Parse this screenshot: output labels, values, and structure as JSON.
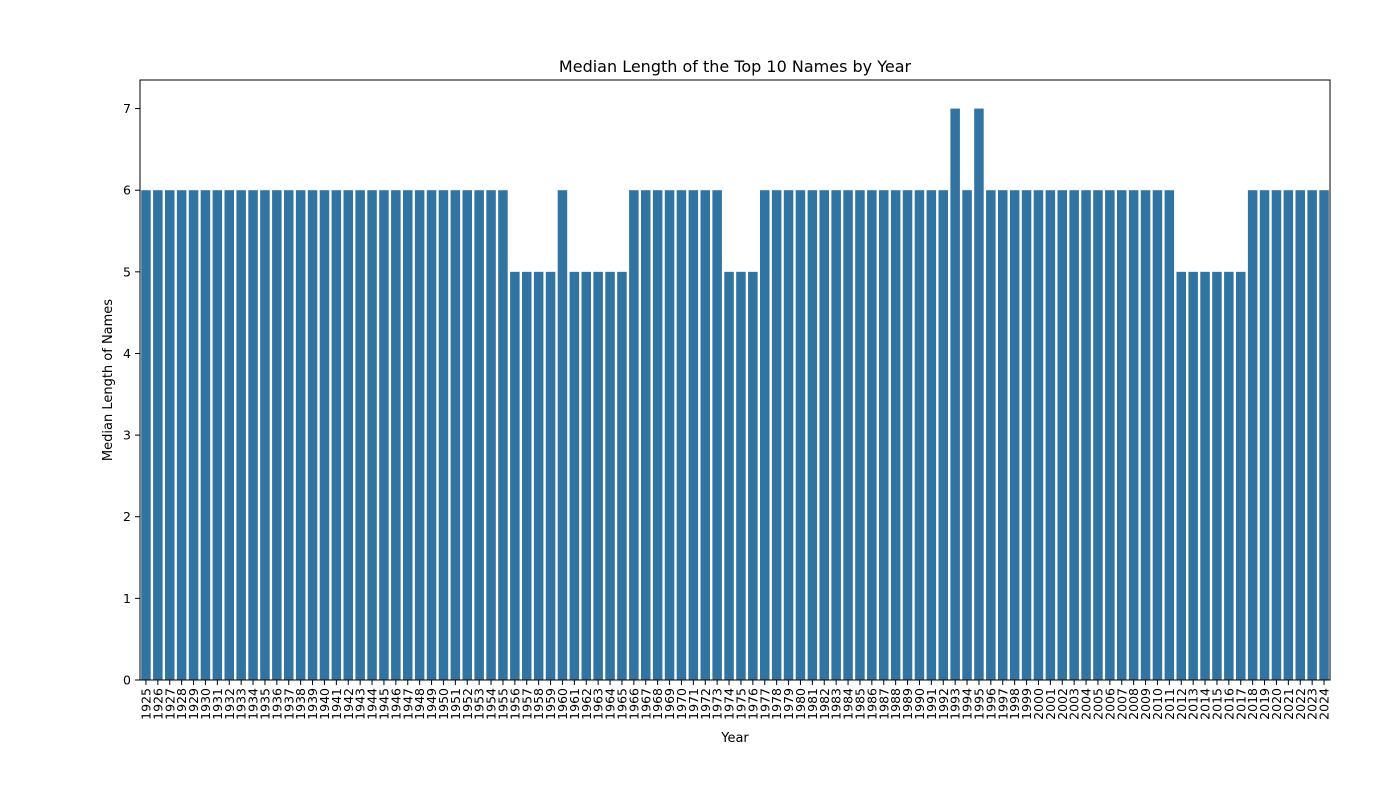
{
  "chart_data": {
    "type": "bar",
    "title": "Median Length of the Top 10 Names by Year",
    "xlabel": "Year",
    "ylabel": "Median Length of Names",
    "ylim": [
      0,
      7.35
    ],
    "yticks": [
      0,
      1,
      2,
      3,
      4,
      5,
      6,
      7
    ],
    "bar_color": "#3274a1",
    "categories": [
      "1925",
      "1926",
      "1927",
      "1928",
      "1929",
      "1930",
      "1931",
      "1932",
      "1933",
      "1934",
      "1935",
      "1936",
      "1937",
      "1938",
      "1939",
      "1940",
      "1941",
      "1942",
      "1943",
      "1944",
      "1945",
      "1946",
      "1947",
      "1948",
      "1949",
      "1950",
      "1951",
      "1952",
      "1953",
      "1954",
      "1955",
      "1956",
      "1957",
      "1958",
      "1959",
      "1960",
      "1961",
      "1962",
      "1963",
      "1964",
      "1965",
      "1966",
      "1967",
      "1968",
      "1969",
      "1970",
      "1971",
      "1972",
      "1973",
      "1974",
      "1975",
      "1976",
      "1977",
      "1978",
      "1979",
      "1980",
      "1981",
      "1982",
      "1983",
      "1984",
      "1985",
      "1986",
      "1987",
      "1988",
      "1989",
      "1990",
      "1991",
      "1992",
      "1993",
      "1994",
      "1995",
      "1996",
      "1997",
      "1998",
      "1999",
      "2000",
      "2001",
      "2002",
      "2003",
      "2004",
      "2005",
      "2006",
      "2007",
      "2008",
      "2009",
      "2010",
      "2011",
      "2012",
      "2013",
      "2014",
      "2015",
      "2016",
      "2017",
      "2018",
      "2019",
      "2020",
      "2021",
      "2022",
      "2023",
      "2024"
    ],
    "values": [
      6,
      6,
      6,
      6,
      6,
      6,
      6,
      6,
      6,
      6,
      6,
      6,
      6,
      6,
      6,
      6,
      6,
      6,
      6,
      6,
      6,
      6,
      6,
      6,
      6,
      6,
      6,
      6,
      6,
      6,
      6,
      5,
      5,
      5,
      5,
      6,
      5,
      5,
      5,
      5,
      5,
      6,
      6,
      6,
      6,
      6,
      6,
      6,
      6,
      5,
      5,
      5,
      6,
      6,
      6,
      6,
      6,
      6,
      6,
      6,
      6,
      6,
      6,
      6,
      6,
      6,
      6,
      6,
      7,
      6,
      7,
      6,
      6,
      6,
      6,
      6,
      6,
      6,
      6,
      6,
      6,
      6,
      6,
      6,
      6,
      6,
      6,
      5,
      5,
      5,
      5,
      5,
      5,
      6,
      6,
      6,
      6,
      6,
      6,
      6
    ]
  }
}
